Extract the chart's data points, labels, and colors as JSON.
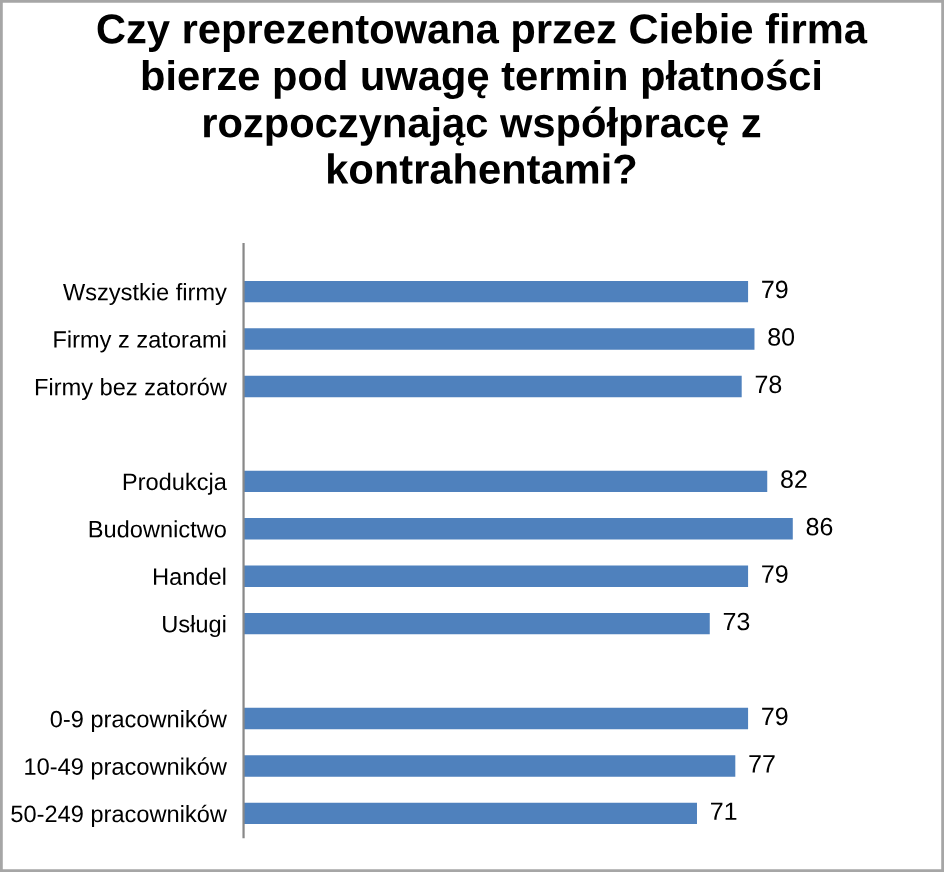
{
  "chart_data": {
    "type": "bar",
    "orientation": "horizontal",
    "title": "Czy reprezentowana przez Ciebie firma\nbierze pod uwagę termin płatności\nrozpoczynając współpracę z\nkontrahentami?",
    "categories": [
      "Wszystkie firmy",
      "Firmy z zatorami",
      "Firmy bez zatorów",
      null,
      "Produkcja",
      "Budownictwo",
      "Handel",
      "Usługi",
      null,
      "0-9 pracowników",
      "10-49 pracowników",
      "50-249 pracowników"
    ],
    "values": [
      79,
      80,
      78,
      null,
      82,
      86,
      79,
      73,
      null,
      79,
      77,
      71
    ],
    "color": "#4f81bd",
    "data_labels": true,
    "grid": false,
    "legend": false
  }
}
